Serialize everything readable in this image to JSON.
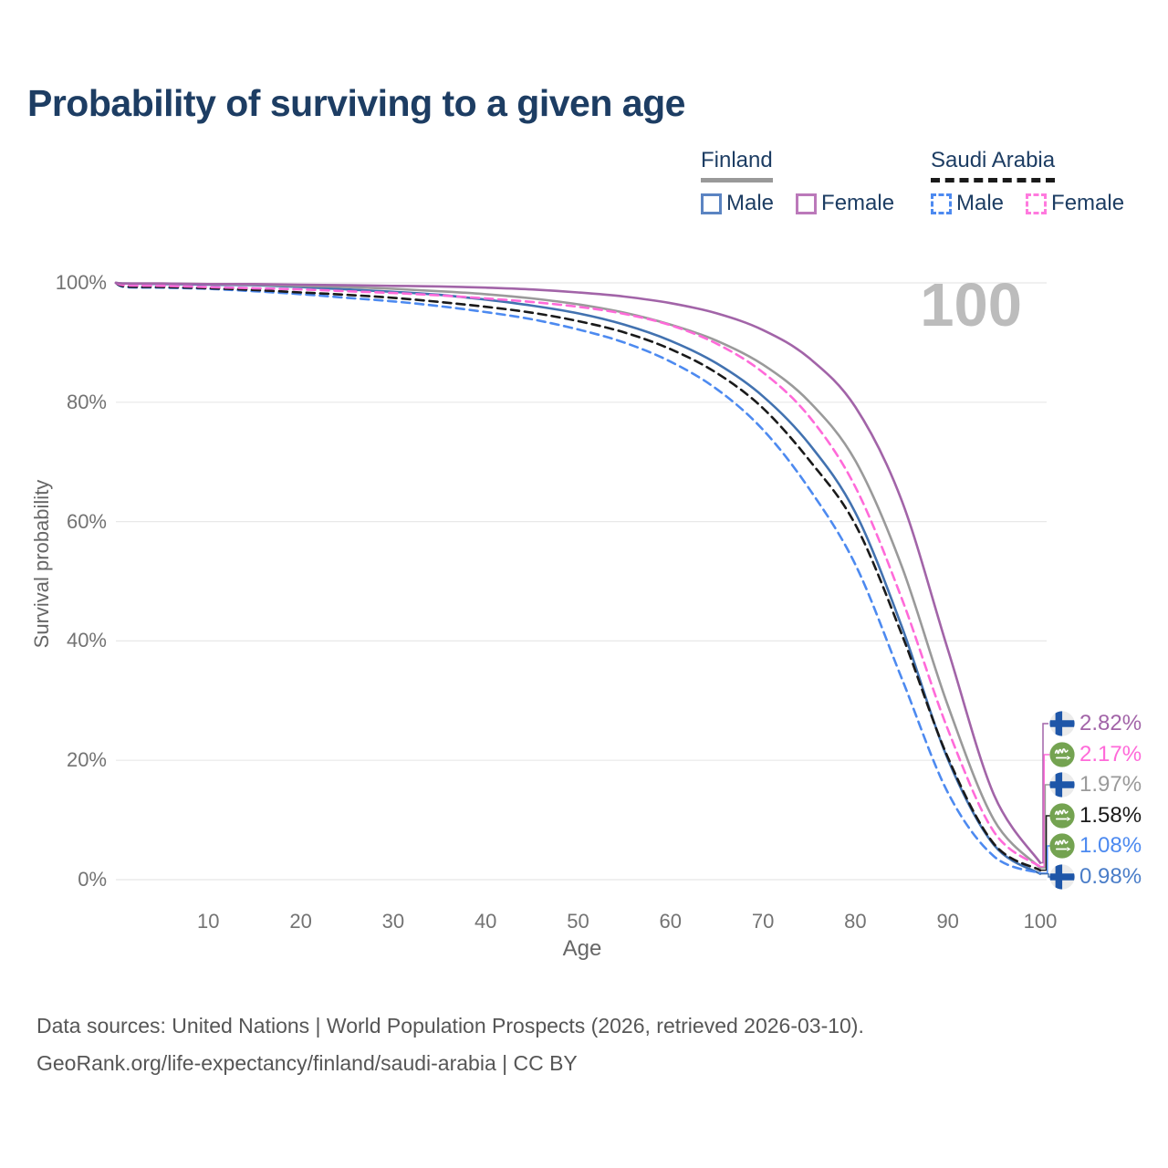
{
  "title": "Probability of surviving to a given age",
  "watermark_age": "100",
  "legend": {
    "groups": [
      {
        "country": "Finland",
        "line_style": "solid",
        "underline_color": "#999999",
        "items": [
          {
            "label": "Male",
            "color": "#5b84c2"
          },
          {
            "label": "Female",
            "color": "#bb79ba"
          }
        ]
      },
      {
        "country": "Saudi Arabia",
        "line_style": "dashed",
        "underline_color": "#1a1a1a",
        "items": [
          {
            "label": "Male",
            "color": "#4d8af0"
          },
          {
            "label": "Female",
            "color": "#ff7ade"
          }
        ]
      }
    ]
  },
  "chart_data": {
    "type": "line",
    "title": "Probability of surviving to a given age",
    "xlabel": "Age",
    "ylabel": "Survival probability",
    "xlim": [
      0,
      100
    ],
    "ylim": [
      0,
      100
    ],
    "grid": "horizontal",
    "x_ticks": [
      10,
      20,
      30,
      40,
      50,
      60,
      70,
      80,
      90,
      100
    ],
    "x_tick_labels": [
      "10",
      "20",
      "30",
      "40",
      "50",
      "60",
      "70",
      "80",
      "90",
      "100"
    ],
    "y_ticks": [
      0,
      20,
      40,
      60,
      80,
      100
    ],
    "y_tick_labels": [
      "0%",
      "20%",
      "40%",
      "60%",
      "80%",
      "100%"
    ],
    "x": [
      0,
      1,
      5,
      10,
      15,
      20,
      25,
      30,
      35,
      40,
      45,
      50,
      55,
      60,
      65,
      70,
      75,
      80,
      85,
      90,
      95,
      100
    ],
    "series": [
      {
        "name": "Finland Female",
        "country": "Finland",
        "sex": "Female",
        "style": "solid",
        "color": "#a264a8",
        "flag": "finland",
        "end_label": "2.82%",
        "label_color": "#a264a8",
        "values": [
          100,
          99.9,
          99.9,
          99.8,
          99.8,
          99.7,
          99.6,
          99.5,
          99.4,
          99.2,
          98.9,
          98.4,
          97.7,
          96.6,
          94.9,
          92.1,
          87.4,
          79.2,
          63.6,
          38.6,
          14.2,
          2.82
        ]
      },
      {
        "name": "Saudi Arabia Female",
        "country": "Saudi Arabia",
        "sex": "Female",
        "style": "dashed",
        "color": "#ff6ad9",
        "flag": "saudi-arabia",
        "end_label": "2.17%",
        "label_color": "#ff6ad9",
        "values": [
          100,
          99.6,
          99.5,
          99.3,
          99.1,
          98.9,
          98.6,
          98.3,
          97.9,
          97.4,
          96.8,
          96.0,
          94.8,
          92.9,
          89.8,
          85.0,
          77.6,
          65.8,
          47.2,
          25.2,
          8.0,
          2.17
        ]
      },
      {
        "name": "Finland",
        "country": "Finland",
        "sex": "Both",
        "style": "solid",
        "color": "#9a9a9a",
        "flag": "finland",
        "end_label": "1.97%",
        "label_color": "#9a9a9a",
        "values": [
          100,
          99.9,
          99.9,
          99.8,
          99.7,
          99.5,
          99.3,
          99.0,
          98.6,
          98.1,
          97.4,
          96.4,
          95.0,
          93.0,
          90.3,
          86.3,
          80.1,
          70.2,
          52.6,
          29.2,
          10.0,
          1.97
        ]
      },
      {
        "name": "Saudi Arabia",
        "country": "Saudi Arabia",
        "sex": "Both",
        "style": "dashed",
        "color": "#1a1a1a",
        "flag": "saudi-arabia",
        "end_label": "1.58%",
        "label_color": "#1a1a1a",
        "values": [
          100,
          99.4,
          99.3,
          99.1,
          98.8,
          98.4,
          98.0,
          97.5,
          96.8,
          96.0,
          95.0,
          93.6,
          91.7,
          88.9,
          84.9,
          79.0,
          70.3,
          59.5,
          41.2,
          20.5,
          6.0,
          1.58
        ]
      },
      {
        "name": "Saudi Arabia Male",
        "country": "Saudi Arabia",
        "sex": "Male",
        "style": "dashed",
        "color": "#4d8af0",
        "flag": "saudi-arabia",
        "end_label": "1.08%",
        "label_color": "#4d8af0",
        "values": [
          100,
          99.3,
          99.2,
          99.0,
          98.6,
          98.1,
          97.5,
          96.9,
          96.1,
          95.1,
          93.9,
          92.2,
          90.0,
          86.8,
          82.2,
          75.4,
          65.5,
          52.8,
          33.8,
          14.6,
          3.9,
          1.08
        ]
      },
      {
        "name": "Finland Male",
        "country": "Finland",
        "sex": "Male",
        "style": "solid",
        "color": "#4272b0",
        "flag": "finland",
        "end_label": "0.98%",
        "label_color": "#4a7dc8",
        "values": [
          100,
          99.9,
          99.8,
          99.7,
          99.6,
          99.3,
          98.9,
          98.5,
          98.0,
          97.2,
          96.2,
          94.9,
          93.0,
          90.3,
          86.5,
          81.0,
          73.0,
          61.5,
          42.5,
          20.2,
          5.8,
          0.98
        ]
      }
    ]
  },
  "flag_colors": {
    "finland_circle": "#ebebeb",
    "finland_cross": "#1e56a8",
    "saudi_circle": "#74a351",
    "saudi_glyph": "#ffffff"
  },
  "footer": {
    "line1": "Data sources: United Nations | World Population Prospects (2026, retrieved 2026-03-10).",
    "line2": "GeoRank.org/life-expectancy/finland/saudi-arabia | CC BY"
  }
}
